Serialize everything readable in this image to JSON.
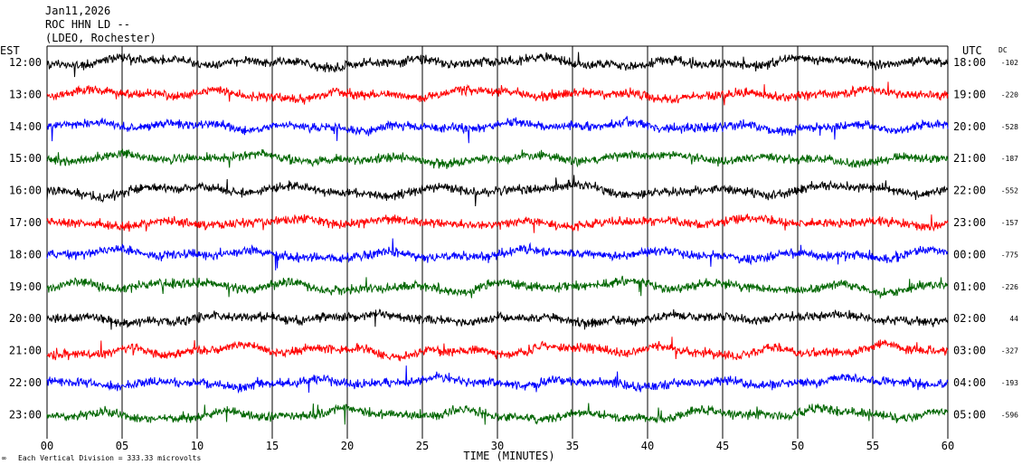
{
  "header": {
    "date": "Jan11,2026",
    "station": "ROC HHN LD --",
    "network": "(LDEO, Rochester)"
  },
  "chart_data": {
    "type": "line",
    "subtype": "helicorder-seismogram",
    "xlabel": "TIME (MINUTES)",
    "x_ticks": [
      "00",
      "05",
      "10",
      "15",
      "20",
      "25",
      "30",
      "35",
      "40",
      "45",
      "50",
      "55",
      "60"
    ],
    "xlim": [
      0,
      60
    ],
    "left_axis_title": "EST",
    "right_axis_title": "UTC",
    "dc_title": "DC",
    "trace_colors": [
      "#000000",
      "#ff0000",
      "#0000ff",
      "#006600"
    ],
    "rows": [
      {
        "est": "12:00",
        "utc": "18:00",
        "dc": "-102",
        "color": "#000000"
      },
      {
        "est": "13:00",
        "utc": "19:00",
        "dc": "-220",
        "color": "#ff0000"
      },
      {
        "est": "14:00",
        "utc": "20:00",
        "dc": "-528",
        "color": "#0000ff"
      },
      {
        "est": "15:00",
        "utc": "21:00",
        "dc": "-187",
        "color": "#006600"
      },
      {
        "est": "16:00",
        "utc": "22:00",
        "dc": "-552",
        "color": "#000000"
      },
      {
        "est": "17:00",
        "utc": "23:00",
        "dc": "-157",
        "color": "#ff0000"
      },
      {
        "est": "18:00",
        "utc": "00:00",
        "dc": "-775",
        "color": "#0000ff"
      },
      {
        "est": "19:00",
        "utc": "01:00",
        "dc": "-226",
        "color": "#006600"
      },
      {
        "est": "20:00",
        "utc": "02:00",
        "dc": "44",
        "color": "#000000"
      },
      {
        "est": "21:00",
        "utc": "03:00",
        "dc": "-327",
        "color": "#ff0000"
      },
      {
        "est": "22:00",
        "utc": "04:00",
        "dc": "-193",
        "color": "#0000ff"
      },
      {
        "est": "23:00",
        "utc": "05:00",
        "dc": "-596",
        "color": "#006600"
      }
    ],
    "footer_scale": "Each Vertical Division =  333.33 microvolts",
    "grid": true
  }
}
